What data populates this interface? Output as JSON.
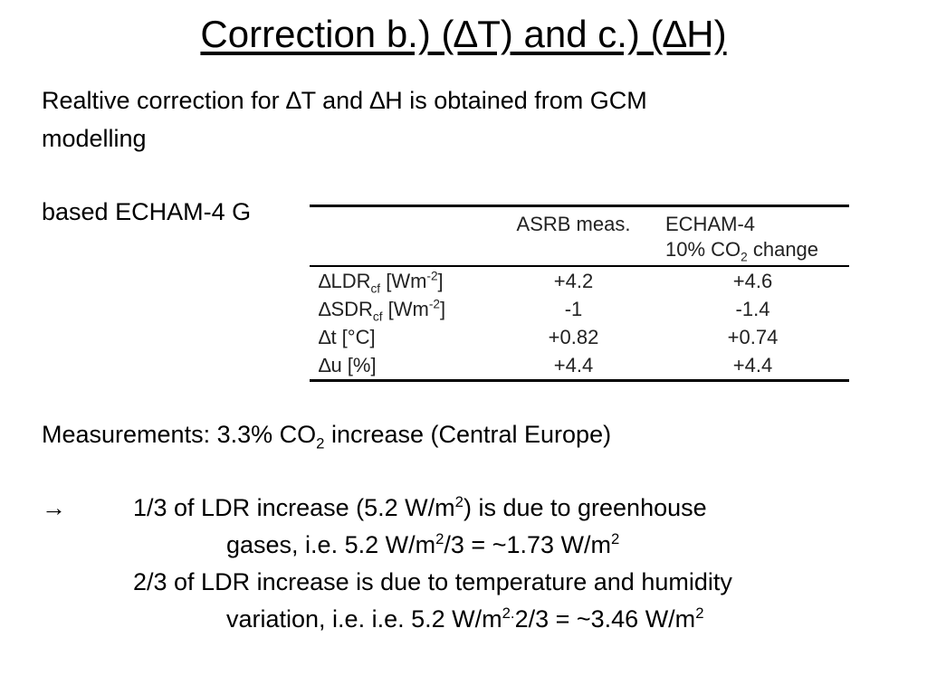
{
  "slide": {
    "title": "Correction b.) (∆T) and c.) (∆H)",
    "intro_line1": "Realtive correction for ∆T and ∆H is obtained from GCM",
    "intro_line2": "modelling",
    "based_line": "based ECHAM-4 G"
  },
  "table": {
    "col1_header": "ASRB meas.",
    "col2_header_line1": "ECHAM-4",
    "col2_header_line2_pre": "10% CO",
    "col2_header_line2_sub": "2",
    "col2_header_line2_post": " change",
    "rows": [
      {
        "pre": "∆LDR",
        "sub": "cf",
        "mid": " [Wm",
        "sup": "-2",
        "post": "]",
        "asrb": "+4.2",
        "echam": "+4.6"
      },
      {
        "pre": "∆SDR",
        "sub": "cf",
        "mid": " [Wm",
        "sup": "-2",
        "post": "]",
        "asrb": "-1",
        "echam": "-1.4"
      },
      {
        "pre": "∆t [°C]",
        "sub": "",
        "mid": "",
        "sup": "",
        "post": "",
        "asrb": "+0.82",
        "echam": "+0.74"
      },
      {
        "pre": "∆u [%]",
        "sub": "",
        "mid": "",
        "sup": "",
        "post": "",
        "asrb": "+4.4",
        "echam": "+4.4"
      }
    ]
  },
  "measurements": {
    "pre": "Measurements: 3.3% CO",
    "sub": "2",
    "post": " increase (Central Europe)"
  },
  "conclusion": {
    "arrow": "→",
    "l1_pre": "1/3 of LDR increase (5.2 W/m",
    "l1_sup": "2",
    "l1_post": ") is due to greenhouse",
    "l2_pre": "gases, i.e. 5.2 W/m",
    "l2_sup": "2",
    "l2_mid": "/3 = ~1.73 W/m",
    "l2_sup2": "2",
    "l3": "2/3 of LDR increase is due to temperature and humidity",
    "l4_pre": "variation, i.e. i.e. 5.2 W/m",
    "l4_sup": "2",
    "l4_dot": ".",
    "l4_mid": "2/3 = ~3.46 W/m",
    "l4_sup2": "2"
  }
}
